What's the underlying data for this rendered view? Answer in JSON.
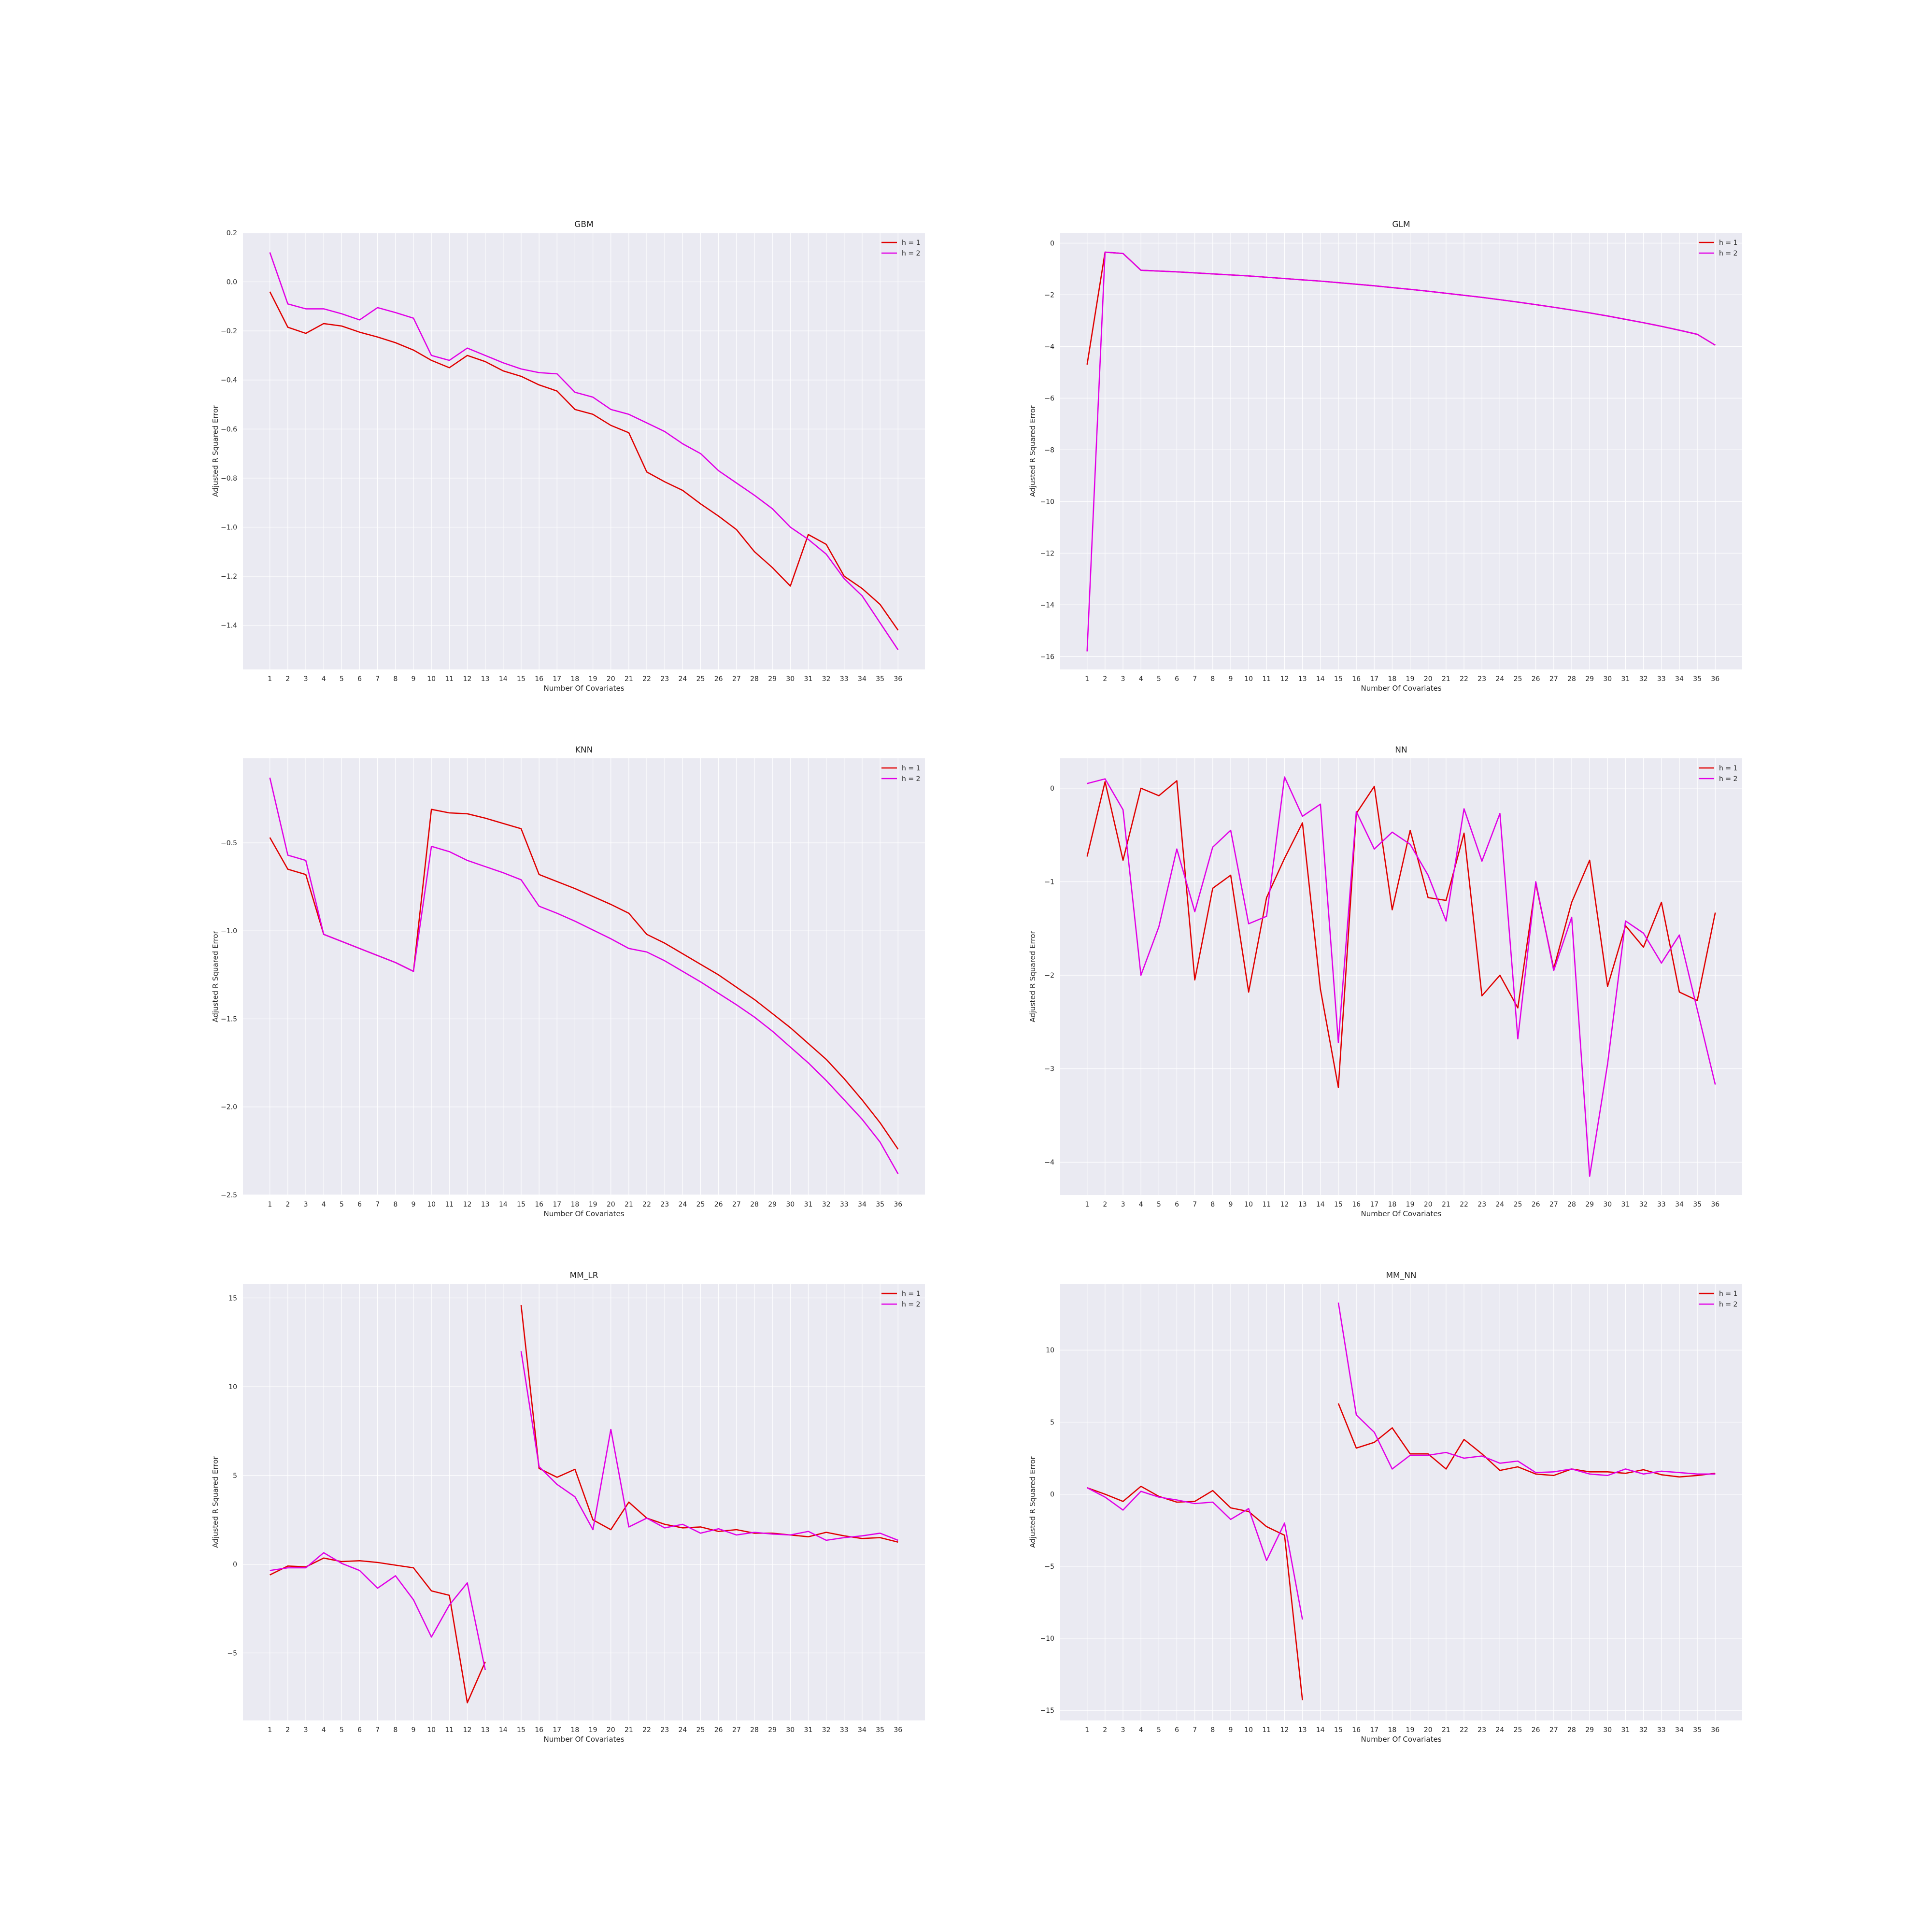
{
  "colors": {
    "h1": "#e00000",
    "h2": "#e100e6",
    "panel_bg": "#eaeaf2",
    "grid": "#ffffff"
  },
  "legend": {
    "h1_label": "h = 1",
    "h2_label": "h = 2",
    "placement": "top-right"
  },
  "chart_data": [
    {
      "type": "line",
      "title": "GBM",
      "xlabel": "Number Of Covariates",
      "ylabel": "Adjusted R Squared Error",
      "x": [
        1,
        2,
        3,
        4,
        5,
        6,
        7,
        8,
        9,
        10,
        11,
        12,
        13,
        14,
        15,
        16,
        17,
        18,
        19,
        20,
        21,
        22,
        23,
        24,
        25,
        26,
        27,
        28,
        29,
        30,
        31,
        32,
        33,
        34,
        35,
        36
      ],
      "xlim": [
        -0.5,
        37.5
      ],
      "ylim": [
        -1.58,
        0.2
      ],
      "yticks": [
        0.2,
        0.0,
        -0.2,
        -0.4,
        -0.6,
        -0.8,
        -1.0,
        -1.2,
        -1.4
      ],
      "ytick_labels": [
        "0.2",
        "0.0",
        "−0.2",
        "−0.4",
        "−0.6",
        "−0.8",
        "−1.0",
        "−1.2",
        "−1.4"
      ],
      "grid": true,
      "series": [
        {
          "name": "h = 1",
          "values": [
            -0.04,
            -0.185,
            -0.21,
            -0.17,
            -0.18,
            -0.205,
            -0.225,
            -0.248,
            -0.278,
            -0.32,
            -0.35,
            -0.3,
            -0.325,
            -0.363,
            -0.385,
            -0.42,
            -0.445,
            -0.52,
            -0.54,
            -0.585,
            -0.615,
            -0.775,
            -0.815,
            -0.85,
            -0.905,
            -0.955,
            -1.01,
            -1.1,
            -1.165,
            -1.24,
            -1.03,
            -1.07,
            -1.2,
            -1.25,
            -1.315,
            -1.42
          ]
        },
        {
          "name": "h = 2",
          "values": [
            0.12,
            -0.09,
            -0.11,
            -0.11,
            -0.13,
            -0.155,
            -0.105,
            -0.125,
            -0.148,
            -0.3,
            -0.32,
            -0.27,
            -0.3,
            -0.33,
            -0.355,
            -0.37,
            -0.375,
            -0.45,
            -0.47,
            -0.52,
            -0.54,
            -0.575,
            -0.61,
            -0.66,
            -0.7,
            -0.77,
            -0.82,
            -0.87,
            -0.925,
            -1.0,
            -1.05,
            -1.11,
            -1.21,
            -1.28,
            -1.39,
            -1.5
          ]
        }
      ]
    },
    {
      "type": "line",
      "title": "GLM",
      "xlabel": "Number Of Covariates",
      "ylabel": "Adjusted R Squared Error",
      "x": [
        1,
        2,
        3,
        4,
        5,
        6,
        7,
        8,
        9,
        10,
        11,
        12,
        13,
        14,
        15,
        16,
        17,
        18,
        19,
        20,
        21,
        22,
        23,
        24,
        25,
        26,
        27,
        28,
        29,
        30,
        31,
        32,
        33,
        34,
        35,
        36
      ],
      "xlim": [
        -0.5,
        37.5
      ],
      "ylim": [
        -16.5,
        0.4
      ],
      "yticks": [
        0,
        -2,
        -4,
        -6,
        -8,
        -10,
        -12,
        -14,
        -16
      ],
      "ytick_labels": [
        "0",
        "−2",
        "−4",
        "−6",
        "−8",
        "−10",
        "−12",
        "−14",
        "−16"
      ],
      "grid": true,
      "series": [
        {
          "name": "h = 1",
          "values": [
            -4.7,
            -0.35,
            -0.4,
            -1.05,
            -1.08,
            -1.11,
            -1.15,
            -1.19,
            -1.23,
            -1.27,
            -1.32,
            -1.37,
            -1.42,
            -1.47,
            -1.53,
            -1.59,
            -1.65,
            -1.72,
            -1.79,
            -1.86,
            -1.94,
            -2.02,
            -2.1,
            -2.19,
            -2.28,
            -2.38,
            -2.48,
            -2.59,
            -2.7,
            -2.82,
            -2.95,
            -3.08,
            -3.22,
            -3.37,
            -3.53,
            -3.95
          ]
        },
        {
          "name": "h = 2",
          "values": [
            -15.8,
            -0.35,
            -0.4,
            -1.05,
            -1.08,
            -1.11,
            -1.15,
            -1.19,
            -1.23,
            -1.27,
            -1.32,
            -1.37,
            -1.42,
            -1.47,
            -1.53,
            -1.59,
            -1.65,
            -1.72,
            -1.79,
            -1.86,
            -1.94,
            -2.02,
            -2.1,
            -2.19,
            -2.28,
            -2.38,
            -2.48,
            -2.59,
            -2.7,
            -2.82,
            -2.95,
            -3.08,
            -3.22,
            -3.37,
            -3.53,
            -3.95
          ]
        }
      ]
    },
    {
      "type": "line",
      "title": "KNN",
      "xlabel": "Number Of Covariates",
      "ylabel": "Adjusted R Squared Error",
      "x": [
        1,
        2,
        3,
        4,
        5,
        6,
        7,
        8,
        9,
        10,
        11,
        12,
        13,
        14,
        15,
        16,
        17,
        18,
        19,
        20,
        21,
        22,
        23,
        24,
        25,
        26,
        27,
        28,
        29,
        30,
        31,
        32,
        33,
        34,
        35,
        36
      ],
      "xlim": [
        -0.5,
        37.5
      ],
      "ylim": [
        -2.5,
        -0.02
      ],
      "yticks": [
        -0.5,
        -1.0,
        -1.5,
        -2.0,
        -2.5
      ],
      "ytick_labels": [
        "−0.5",
        "−1.0",
        "−1.5",
        "−2.0",
        "−2.5"
      ],
      "grid": true,
      "series": [
        {
          "name": "h = 1",
          "values": [
            -0.47,
            -0.65,
            -0.68,
            -1.02,
            -1.06,
            -1.1,
            -1.14,
            -1.18,
            -1.23,
            -0.31,
            -0.33,
            -0.335,
            -0.36,
            -0.39,
            -0.42,
            -0.68,
            -0.72,
            -0.76,
            -0.805,
            -0.85,
            -0.9,
            -1.02,
            -1.07,
            -1.13,
            -1.19,
            -1.25,
            -1.32,
            -1.39,
            -1.47,
            -1.55,
            -1.64,
            -1.73,
            -1.84,
            -1.96,
            -2.09,
            -2.24
          ]
        },
        {
          "name": "h = 2",
          "values": [
            -0.13,
            -0.57,
            -0.6,
            -1.02,
            -1.06,
            -1.1,
            -1.14,
            -1.18,
            -1.23,
            -0.52,
            -0.55,
            -0.6,
            -0.635,
            -0.67,
            -0.71,
            -0.86,
            -0.9,
            -0.945,
            -0.995,
            -1.045,
            -1.1,
            -1.12,
            -1.17,
            -1.23,
            -1.29,
            -1.355,
            -1.42,
            -1.49,
            -1.57,
            -1.66,
            -1.75,
            -1.85,
            -1.96,
            -2.07,
            -2.2,
            -2.38
          ]
        }
      ]
    },
    {
      "type": "line",
      "title": "NN",
      "xlabel": "Number Of Covariates",
      "ylabel": "Adjusted R Squared Error",
      "x": [
        1,
        2,
        3,
        4,
        5,
        6,
        7,
        8,
        9,
        10,
        11,
        12,
        13,
        14,
        15,
        16,
        17,
        18,
        19,
        20,
        21,
        22,
        23,
        24,
        25,
        26,
        27,
        28,
        29,
        30,
        31,
        32,
        33,
        34,
        35,
        36
      ],
      "xlim": [
        -0.5,
        37.5
      ],
      "ylim": [
        -4.35,
        0.32
      ],
      "yticks": [
        0,
        -1,
        -2,
        -3,
        -4
      ],
      "ytick_labels": [
        "0",
        "−1",
        "−2",
        "−3",
        "−4"
      ],
      "grid": true,
      "series": [
        {
          "name": "h = 1",
          "values": [
            -0.73,
            0.07,
            -0.77,
            0.0,
            -0.08,
            0.08,
            -2.05,
            -1.07,
            -0.93,
            -2.18,
            -1.17,
            -0.75,
            -0.37,
            -2.15,
            -3.2,
            -0.27,
            0.02,
            -1.3,
            -0.45,
            -1.17,
            -1.2,
            -0.48,
            -2.22,
            -2.0,
            -2.35,
            -1.02,
            -1.93,
            -1.22,
            -0.77,
            -2.12,
            -1.47,
            -1.7,
            -1.22,
            -2.18,
            -2.27,
            -1.33
          ]
        },
        {
          "name": "h = 2",
          "values": [
            0.05,
            0.1,
            -0.23,
            -2.0,
            -1.48,
            -0.65,
            -1.32,
            -0.63,
            -0.45,
            -1.45,
            -1.37,
            0.12,
            -0.3,
            -0.17,
            -2.72,
            -0.25,
            -0.65,
            -0.47,
            -0.6,
            -0.93,
            -1.42,
            -0.22,
            -0.78,
            -0.27,
            -2.68,
            -1.0,
            -1.95,
            -1.38,
            -4.15,
            -2.95,
            -1.42,
            -1.55,
            -1.87,
            -1.57,
            -2.37,
            -3.17
          ]
        }
      ]
    },
    {
      "type": "line",
      "title": "MM_LR",
      "xlabel": "Number Of Covariates",
      "ylabel": "Adjusted R Squared Error",
      "x": [
        1,
        2,
        3,
        4,
        5,
        6,
        7,
        8,
        9,
        10,
        11,
        12,
        13,
        14,
        15,
        16,
        17,
        18,
        19,
        20,
        21,
        22,
        23,
        24,
        25,
        26,
        27,
        28,
        29,
        30,
        31,
        32,
        33,
        34,
        35,
        36
      ],
      "xlim": [
        -0.5,
        37.5
      ],
      "ylim": [
        -8.8,
        15.8
      ],
      "yticks": [
        15,
        10,
        5,
        0,
        -5
      ],
      "ytick_labels": [
        "15",
        "10",
        "5",
        "0",
        "−5"
      ],
      "grid": true,
      "series": [
        {
          "name": "h = 1",
          "values": [
            -0.6,
            -0.1,
            -0.15,
            0.35,
            0.15,
            0.2,
            0.1,
            -0.05,
            -0.2,
            -1.5,
            -1.75,
            -7.8,
            -5.5,
            null,
            14.6,
            5.4,
            4.9,
            5.35,
            2.5,
            1.95,
            3.5,
            2.6,
            2.25,
            2.05,
            2.1,
            1.85,
            1.95,
            1.75,
            1.75,
            1.65,
            1.55,
            1.8,
            1.6,
            1.45,
            1.5,
            1.25
          ]
        },
        {
          "name": "h = 2",
          "values": [
            -0.35,
            -0.2,
            -0.2,
            0.65,
            0.05,
            -0.35,
            -1.35,
            -0.65,
            -2.0,
            -4.1,
            -2.3,
            -1.05,
            -5.95,
            null,
            12.0,
            5.5,
            4.5,
            3.8,
            1.95,
            7.6,
            2.1,
            2.6,
            2.05,
            2.25,
            1.75,
            2.0,
            1.65,
            1.8,
            1.7,
            1.65,
            1.85,
            1.35,
            1.5,
            1.6,
            1.75,
            1.35
          ]
        }
      ]
    },
    {
      "type": "line",
      "title": "MM_NN",
      "xlabel": "Number Of Covariates",
      "ylabel": "Adjusted R Squared Error",
      "x": [
        1,
        2,
        3,
        4,
        5,
        6,
        7,
        8,
        9,
        10,
        11,
        12,
        13,
        14,
        15,
        16,
        17,
        18,
        19,
        20,
        21,
        22,
        23,
        24,
        25,
        26,
        27,
        28,
        29,
        30,
        31,
        32,
        33,
        34,
        35,
        36
      ],
      "xlim": [
        -0.5,
        37.5
      ],
      "ylim": [
        -15.7,
        14.6
      ],
      "yticks": [
        10,
        5,
        0,
        -5,
        -10,
        -15
      ],
      "ytick_labels": [
        "10",
        "5",
        "0",
        "−5",
        "−10",
        "−15"
      ],
      "grid": true,
      "series": [
        {
          "name": "h = 1",
          "values": [
            0.45,
            0.0,
            -0.5,
            0.55,
            -0.15,
            -0.55,
            -0.5,
            0.25,
            -0.95,
            -1.2,
            -2.25,
            -2.85,
            -14.3,
            null,
            6.3,
            3.2,
            3.6,
            4.6,
            2.8,
            2.8,
            1.75,
            3.8,
            2.8,
            1.65,
            1.9,
            1.4,
            1.3,
            1.75,
            1.55,
            1.55,
            1.45,
            1.7,
            1.35,
            1.2,
            1.3,
            1.45
          ]
        },
        {
          "name": "h = 2",
          "values": [
            0.45,
            -0.2,
            -1.1,
            0.2,
            -0.2,
            -0.4,
            -0.65,
            -0.55,
            -1.75,
            -1.0,
            -4.6,
            -2.0,
            -8.7,
            null,
            13.3,
            5.5,
            4.3,
            1.75,
            2.7,
            2.7,
            2.9,
            2.5,
            2.65,
            2.15,
            2.3,
            1.5,
            1.55,
            1.75,
            1.4,
            1.3,
            1.75,
            1.4,
            1.6,
            1.5,
            1.4,
            1.4
          ]
        }
      ]
    }
  ]
}
